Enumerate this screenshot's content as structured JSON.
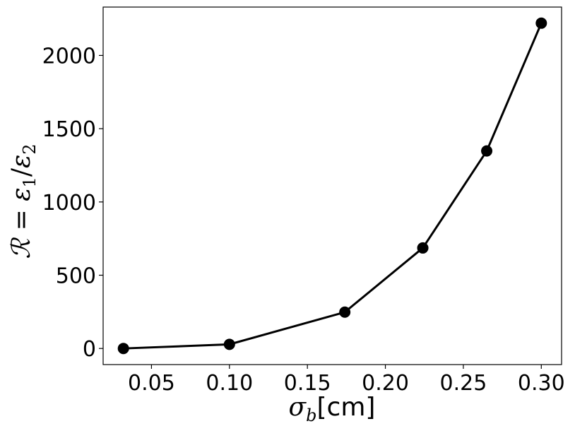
{
  "chart_data": {
    "type": "line",
    "x": [
      0.032,
      0.1,
      0.174,
      0.224,
      0.265,
      0.3
    ],
    "series": [
      {
        "values": [
          0,
          28,
          248,
          686,
          1348,
          2220
        ],
        "color": "#000000",
        "marker": "circle"
      }
    ],
    "xlabel": "σb[cm]",
    "ylabel": "R = ε1/ε2",
    "xlim": [
      0.019,
      0.313
    ],
    "ylim": [
      -110,
      2330
    ],
    "xticks": [
      0.05,
      0.1,
      0.15,
      0.2,
      0.25,
      0.3
    ],
    "xtick_labels": [
      "0.05",
      "0.10",
      "0.15",
      "0.20",
      "0.25",
      "0.30"
    ],
    "yticks": [
      0,
      500,
      1000,
      1500,
      2000
    ],
    "ytick_labels": [
      "0",
      "500",
      "1000",
      "1500",
      "2000"
    ],
    "grid": false,
    "legend": "none"
  }
}
